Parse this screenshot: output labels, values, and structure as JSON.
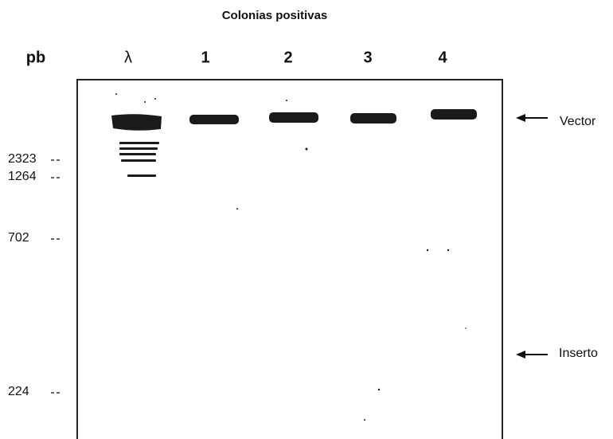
{
  "figure": {
    "title": "Colonias positivas",
    "unit_label": "pb",
    "lanes": [
      "λ",
      "1",
      "2",
      "3",
      "4"
    ],
    "markers": [
      "2323",
      "1264",
      "702",
      "224"
    ],
    "annotations": [
      "Vector",
      "Inserto"
    ]
  }
}
